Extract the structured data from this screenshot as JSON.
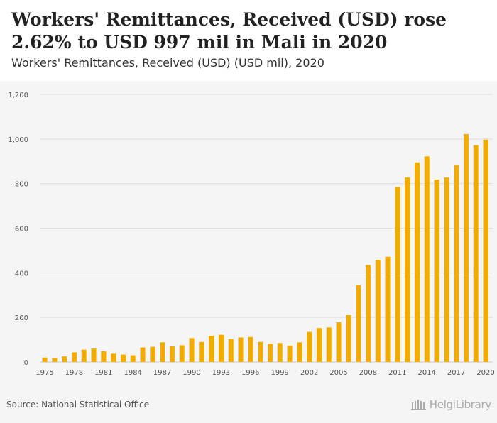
{
  "header": {
    "title": "Workers' Remittances, Received (USD) rose 2.62% to USD 997 mil in Mali in 2020",
    "subtitle": "Workers' Remittances, Received (USD) (USD mil), 2020"
  },
  "footer": {
    "source": "Source: National Statistical Office",
    "brand": "HelgiLibrary"
  },
  "colors": {
    "bar": "#f2ab00",
    "grid": "#dddddd",
    "panel": "#f5f5f5",
    "tick_text": "#555555"
  },
  "chart_data": {
    "type": "bar",
    "title": "Workers' Remittances, Received (USD) rose 2.62% to USD 997 mil in Mali in 2020",
    "subtitle": "Workers' Remittances, Received (USD) (USD mil), 2020",
    "xlabel": "",
    "ylabel": "",
    "ylim": [
      0,
      1200
    ],
    "yticks": [
      0,
      200,
      400,
      600,
      800,
      1000,
      1200
    ],
    "ytick_labels": [
      "0",
      "200",
      "400",
      "600",
      "800",
      "1,000",
      "1,200"
    ],
    "grid": true,
    "categories": [
      1975,
      1976,
      1977,
      1978,
      1979,
      1980,
      1981,
      1982,
      1983,
      1984,
      1985,
      1986,
      1987,
      1988,
      1989,
      1990,
      1991,
      1992,
      1993,
      1994,
      1995,
      1996,
      1997,
      1998,
      1999,
      2000,
      2001,
      2002,
      2003,
      2004,
      2005,
      2006,
      2007,
      2008,
      2009,
      2010,
      2011,
      2012,
      2013,
      2014,
      2015,
      2016,
      2017,
      2018,
      2019,
      2020
    ],
    "xtick_labels": [
      "1975",
      "1978",
      "1981",
      "1984",
      "1987",
      "1990",
      "1993",
      "1996",
      "1999",
      "2002",
      "2005",
      "2008",
      "2011",
      "2014",
      "2017",
      "2020"
    ],
    "values": [
      20,
      18,
      25,
      43,
      55,
      60,
      48,
      37,
      33,
      30,
      65,
      68,
      88,
      70,
      75,
      107,
      90,
      117,
      122,
      103,
      110,
      112,
      90,
      82,
      85,
      73,
      88,
      135,
      152,
      155,
      178,
      210,
      345,
      435,
      458,
      472,
      785,
      827,
      895,
      922,
      818,
      827,
      883,
      1022,
      972,
      997
    ]
  }
}
